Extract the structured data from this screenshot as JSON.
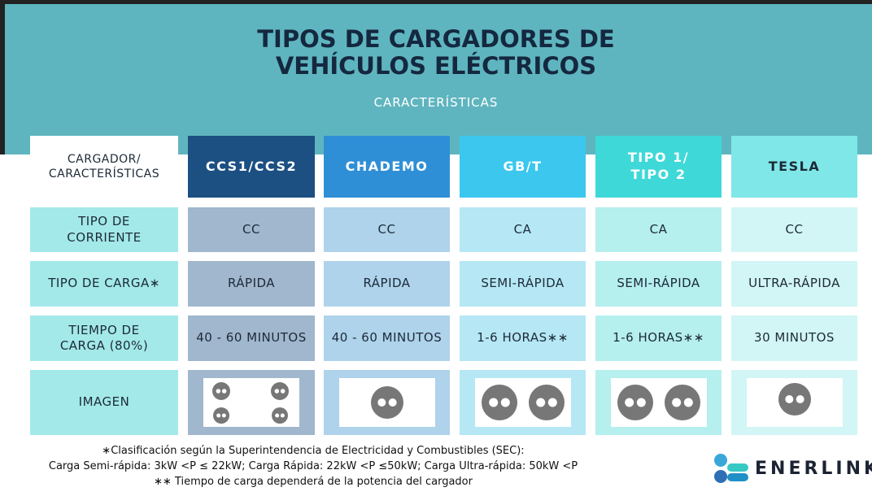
{
  "header": {
    "title": [
      "TIPOS DE CARGADORES DE",
      "VEHÍCULOS ELÉCTRICOS"
    ],
    "subtitle": "CARACTERÍSTICAS"
  },
  "table": {
    "header": [
      "CARGADOR/\nCARACTERÍSTICAS",
      "CCS1/CCS2",
      "CHADEMO",
      "GB/T",
      "TIPO 1/\nTIPO 2",
      "TESLA"
    ],
    "rows": [
      [
        "TIPO DE\nCORRIENTE",
        "CC",
        "CC",
        "CA",
        "CA",
        "CC"
      ],
      [
        "TIPO DE CARGA∗",
        "RÁPIDA",
        "RÁPIDA",
        "SEMI-RÁPIDA",
        "SEMI-RÁPIDA",
        "ULTRA-RÁPIDA"
      ],
      [
        "TIEMPO DE\nCARGA (80%)",
        "40 - 60 MINUTOS",
        "40 - 60 MINUTOS",
        "1-6 HORAS∗∗",
        "1-6 HORAS∗∗",
        "30 MINUTOS"
      ],
      [
        "IMAGEN"
      ]
    ]
  },
  "footer": {
    "notes": [
      "∗Clasificación según la Superintendencia de Electricidad y Combustibles (SEC):",
      "Carga Semi-rápida: 3kW <P ≤ 22kW; Carga Rápida: 22kW <P ≤50kW; Carga Ultra-rápida: 50kW <P",
      "∗∗ Tiempo de carga dependerá de la potencia del cargador"
    ]
  },
  "logo": {
    "text": "ENERLINK"
  }
}
